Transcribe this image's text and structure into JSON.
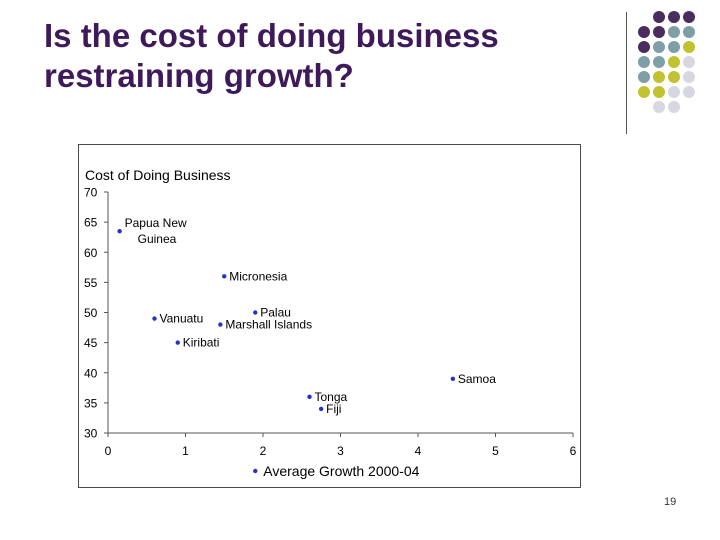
{
  "slide": {
    "title_line1": "Is the cost of doing business",
    "title_line2": "restraining growth?",
    "page_number": "19"
  },
  "decoration": {
    "dot_colors": [
      "#4a2c5e",
      "#7f9fa8",
      "#c2c230",
      "#d7d7e2"
    ]
  },
  "chart_data": {
    "type": "scatter",
    "title": "Cost of Doing Business",
    "xlabel": "Average Growth 2000-04",
    "ylabel": "",
    "xlim": [
      0,
      6
    ],
    "ylim": [
      30,
      70
    ],
    "xticks": [
      "0",
      "1",
      "2",
      "3",
      "4",
      "5",
      "6"
    ],
    "yticks": [
      "30",
      "35",
      "40",
      "45",
      "50",
      "55",
      "60",
      "65",
      "70"
    ],
    "marker_color": "#2233cc",
    "grid": false,
    "points": [
      {
        "label_lines": [
          "Papua New",
          "Guinea"
        ],
        "x": 0.15,
        "y": 63.5
      },
      {
        "label_lines": [
          "Micronesia"
        ],
        "x": 1.5,
        "y": 56
      },
      {
        "label_lines": [
          "Vanuatu"
        ],
        "x": 0.6,
        "y": 49
      },
      {
        "label_lines": [
          "Palau"
        ],
        "x": 1.9,
        "y": 50
      },
      {
        "label_lines": [
          "Marshall Islands"
        ],
        "x": 1.45,
        "y": 48
      },
      {
        "label_lines": [
          "Kiribati"
        ],
        "x": 0.9,
        "y": 45
      },
      {
        "label_lines": [
          "Samoa"
        ],
        "x": 4.45,
        "y": 39
      },
      {
        "label_lines": [
          "Tonga"
        ],
        "x": 2.6,
        "y": 36
      },
      {
        "label_lines": [
          "Fiji"
        ],
        "x": 2.75,
        "y": 34
      }
    ]
  }
}
